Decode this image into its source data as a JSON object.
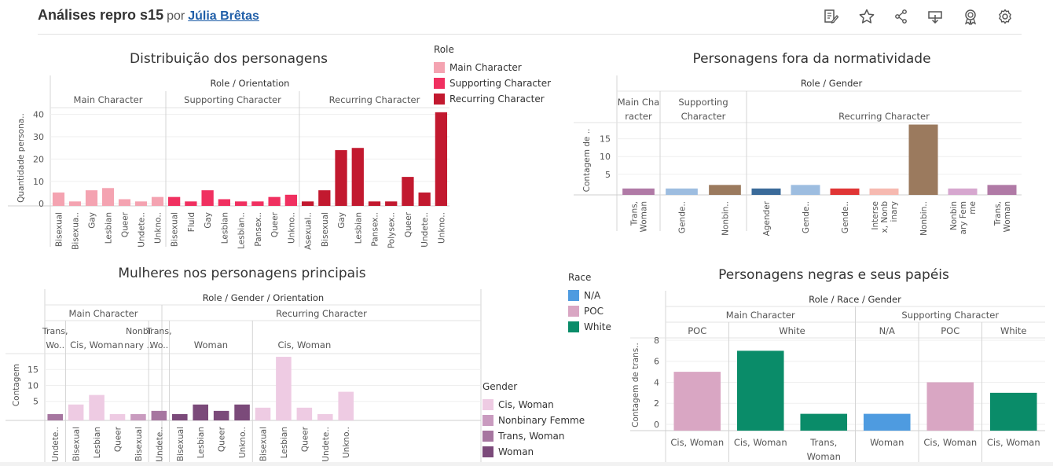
{
  "header": {
    "title": "Análises repro s15",
    "by": "por",
    "author": "Júlia Brêtas"
  },
  "toolbar_icons": [
    "edit-icon",
    "star-icon",
    "share-icon",
    "download-icon",
    "badge-icon",
    "gear-icon"
  ],
  "colors": {
    "main": "#f4a3b1",
    "supporting": "#f03060",
    "recurring": "#c2192f",
    "race_na": "#4e9be0",
    "race_poc": "#d9a6c3",
    "race_white": "#0a8c69",
    "g_cis": "#eecbe3",
    "g_nonbinary": "#c99bbf",
    "g_trans": "#a676a0",
    "g_woman": "#7b4a7a",
    "fn_agender": "#3a6a99",
    "fn_gender_light": "#9dbde0",
    "fn_gender_red": "#e03535",
    "fn_intersex": "#f6b9b0",
    "fn_nonbinary": "#9b7a5e",
    "fn_nonbinary_femme": "#d6a7cf",
    "fn_trans": "#b07aa6"
  },
  "legends": {
    "role": {
      "title": "Role",
      "items": [
        "Main Character",
        "Supporting Character",
        "Recurring Character"
      ]
    },
    "race": {
      "title": "Race",
      "items": [
        "N/A",
        "POC",
        "White"
      ]
    },
    "gender": {
      "title": "Gender",
      "items": [
        "Cis, Woman",
        "Nonbinary Femme",
        "Trans, Woman",
        "Woman"
      ]
    }
  },
  "chart_data": [
    {
      "type": "bar",
      "title": "Distribuição dos personagens",
      "header": "Role / Orientation",
      "ylabel": "Quantidade persona..",
      "ylim": [
        0,
        42
      ],
      "yticks": [
        0,
        10,
        20,
        30,
        40
      ],
      "groups": [
        {
          "name": "Main Character",
          "color": "main",
          "categories": [
            "Bisexual",
            "Bisexua..",
            "Gay",
            "Lesbian",
            "Queer",
            "Undete..",
            "Unkno.."
          ],
          "values": [
            5,
            1,
            6,
            7,
            2,
            1,
            3
          ]
        },
        {
          "name": "Supporting Character",
          "color": "supporting",
          "categories": [
            "Bisexual",
            "Fluid",
            "Gay",
            "Lesbian",
            "Lesbian..",
            "Pansex..",
            "Queer",
            "Unkno.."
          ],
          "values": [
            3,
            1,
            6,
            2,
            1,
            1,
            3,
            4
          ]
        },
        {
          "name": "Recurring Character",
          "color": "recurring",
          "categories": [
            "Asexual..",
            "Bisexual",
            "Gay",
            "Lesbian",
            "Pansex..",
            "Polysex..",
            "Queer",
            "Undete..",
            "Unkno.."
          ],
          "values": [
            1,
            6,
            24,
            25,
            1,
            1,
            12,
            5,
            41
          ]
        }
      ]
    },
    {
      "type": "bar",
      "title": "Personagens fora da normatividade",
      "header": "Role / Gender",
      "ylabel": "Contagem de ..",
      "ylim": [
        0,
        20
      ],
      "yticks": [
        5,
        10,
        15
      ],
      "groups": [
        {
          "name": [
            "Main Cha",
            "racter"
          ],
          "categories": [
            [
              "Trans,",
              "Woman"
            ]
          ],
          "values": [
            1
          ],
          "colors": [
            "fn_trans"
          ]
        },
        {
          "name": [
            "Supporting",
            "Character"
          ],
          "categories": [
            [
              "Gende.."
            ],
            [
              "Nonbin.."
            ]
          ],
          "values": [
            1,
            2
          ],
          "colors": [
            "fn_gender_light",
            "fn_nonbinary"
          ]
        },
        {
          "name": [
            "Recurring Character"
          ],
          "categories": [
            [
              "Agender"
            ],
            [
              "Gende.."
            ],
            [
              "Gende.."
            ],
            [
              "Interse",
              "x, Nonb",
              "inary"
            ],
            [
              "Nonbin.."
            ],
            [
              "Nonbin",
              "ary Fem",
              "me"
            ],
            [
              "Trans,",
              "Woman"
            ]
          ],
          "values": [
            1,
            2,
            1,
            1,
            19,
            1,
            2
          ],
          "colors": [
            "fn_agender",
            "fn_gender_light",
            "fn_gender_red",
            "fn_intersex",
            "fn_nonbinary",
            "fn_nonbinary_femme",
            "fn_trans"
          ]
        }
      ]
    },
    {
      "type": "bar",
      "title": "Mulheres nos personagens principais",
      "header": "Role / Gender / Orientation",
      "ylabel": "Contagem",
      "ylim": [
        0,
        20
      ],
      "yticks": [
        5,
        10,
        15
      ],
      "roles": [
        {
          "name": "Main Character",
          "genders": [
            {
              "name": [
                "Trans,",
                "Wo.."
              ],
              "categories": [
                "Undete.."
              ],
              "values": [
                1
              ],
              "color": "g_trans"
            },
            {
              "name": [
                "Cis, Woman"
              ],
              "categories": [
                "Bisexual",
                "Lesbian",
                "Queer"
              ],
              "values": [
                4,
                7,
                1
              ],
              "color": "g_cis"
            }
          ]
        },
        {
          "name": "Recurring Character",
          "genders": [
            {
              "name": [
                "Nonbi",
                "nary .."
              ],
              "categories": [
                "Bisexual"
              ],
              "values": [
                1
              ],
              "color": "g_nonbinary"
            },
            {
              "name": [
                "Trans,",
                "Wo.."
              ],
              "categories": [
                "Undete.."
              ],
              "values": [
                2
              ],
              "color": "g_trans"
            },
            {
              "name": [
                "Woman"
              ],
              "categories": [
                "Bisexual",
                "Lesbian",
                "Queer",
                "Unkno.."
              ],
              "values": [
                1,
                4,
                2,
                4
              ],
              "color": "g_woman"
            },
            {
              "name": [
                "Cis, Woman"
              ],
              "categories": [
                "Bisexual",
                "Lesbian",
                "Queer",
                "Undete..",
                "Unkno.."
              ],
              "values": [
                3,
                19,
                3,
                1,
                8
              ],
              "color": "g_cis"
            }
          ]
        }
      ]
    },
    {
      "type": "bar",
      "title": "Personagens negras e seus papéis",
      "header": "Role / Race / Gender",
      "ylabel": "Contagem de trans..",
      "ylim": [
        0,
        8
      ],
      "yticks": [
        0,
        2,
        4,
        6,
        8
      ],
      "roles": [
        {
          "name": "Main Character",
          "races": [
            {
              "name": "POC",
              "color": "race_poc",
              "categories": [
                [
                  "Cis, Woman"
                ]
              ],
              "values": [
                5
              ]
            },
            {
              "name": "White",
              "color": "race_white",
              "categories": [
                [
                  "Cis, Woman"
                ],
                [
                  "Trans,",
                  "Woman"
                ]
              ],
              "values": [
                7,
                1
              ]
            }
          ]
        },
        {
          "name": "Supporting Character",
          "races": [
            {
              "name": "N/A",
              "color": "race_na",
              "categories": [
                [
                  "Woman"
                ]
              ],
              "values": [
                1
              ]
            },
            {
              "name": "POC",
              "color": "race_poc",
              "categories": [
                [
                  "Cis, Woman"
                ]
              ],
              "values": [
                4
              ]
            },
            {
              "name": "White",
              "color": "race_white",
              "categories": [
                [
                  "Cis, Woman"
                ]
              ],
              "values": [
                3
              ]
            }
          ]
        }
      ]
    }
  ]
}
